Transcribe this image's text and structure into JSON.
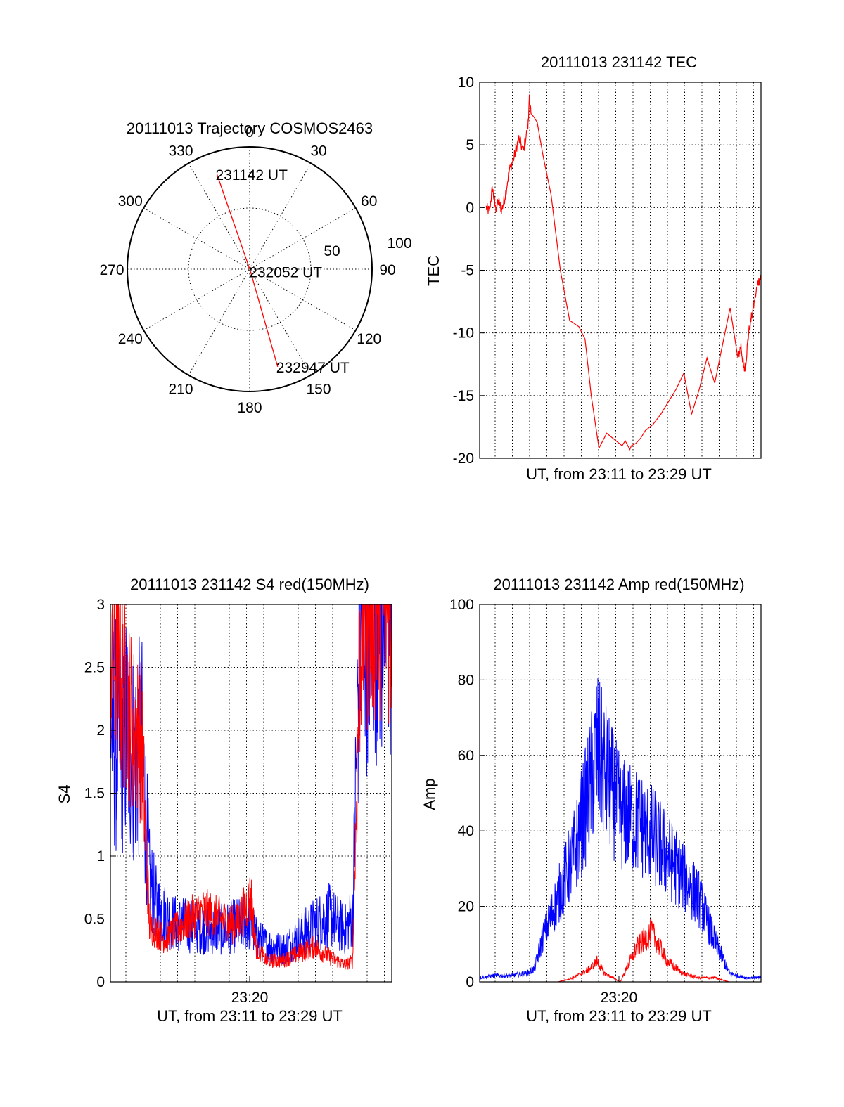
{
  "chart_data": [
    {
      "id": "polar",
      "type": "scatter",
      "title": "20111013 Trajectory COSMOS2463",
      "projection": "polar",
      "angle_labels": [
        "0",
        "30",
        "60",
        "90",
        "120",
        "150",
        "180",
        "210",
        "240",
        "270",
        "300",
        "330"
      ],
      "radial_labels": [
        "50",
        "100"
      ],
      "rlim": [
        0,
        100
      ],
      "grid": true,
      "track": [
        {
          "az": 341,
          "r": 82,
          "label": "231142 UT"
        },
        {
          "az": 160,
          "r": 2,
          "label": "232052 UT"
        },
        {
          "az": 164,
          "r": 83,
          "label": "232947 UT"
        }
      ],
      "colors": {
        "track": "#ff0000"
      }
    },
    {
      "id": "tec",
      "type": "line",
      "title": "20111013 231142 TEC",
      "xlabel": "UT, from 23:11 to 23:29 UT",
      "ylabel": "TEC",
      "ylim": [
        -20,
        10
      ],
      "yticks": [
        "10",
        "5",
        "0",
        "-5",
        "-10",
        "-15",
        "-20"
      ],
      "xlim_minutes": [
        0,
        18
      ],
      "grid": true,
      "series": [
        {
          "color": "#ff0000",
          "x": [
            0.2,
            0.4,
            0.6,
            0.8,
            1.0,
            1.2,
            1.4,
            1.7,
            2.0,
            2.3,
            2.6,
            2.9,
            3.0,
            3.1,
            3.3,
            3.5,
            3.9,
            4.4,
            5.0,
            5.6,
            6.2,
            6.6,
            7.0,
            7.5,
            8.0,
            8.5,
            9.0,
            9.2,
            9.5,
            9.6,
            9.9,
            10.2,
            10.5,
            11.0,
            11.5,
            12.0,
            12.5,
            13.0,
            13.5,
            14.0,
            14.5,
            15.0,
            15.5,
            16.0,
            16.5,
            16.7,
            16.9,
            17.0,
            17.2,
            17.5,
            17.8,
            18.0
          ],
          "y": [
            0.0,
            -0.3,
            1.6,
            -0.1,
            0.5,
            -0.2,
            0.8,
            3.0,
            4.0,
            5.5,
            4.5,
            6.5,
            8.8,
            7.5,
            7.2,
            6.8,
            4.0,
            1.0,
            -5.0,
            -9.0,
            -9.5,
            -10.5,
            -15.0,
            -19.2,
            -18.0,
            -18.5,
            -19.0,
            -18.6,
            -19.3,
            -19.0,
            -18.8,
            -18.4,
            -17.8,
            -17.3,
            -16.5,
            -15.5,
            -14.5,
            -13.2,
            -16.5,
            -14.5,
            -12.0,
            -14.0,
            -11.0,
            -8.0,
            -12.0,
            -11.0,
            -13.0,
            -12.5,
            -10.0,
            -8.0,
            -6.0,
            -5.5
          ]
        }
      ]
    },
    {
      "id": "s4",
      "type": "line",
      "title": "20111013 231142 S4 red(150MHz)",
      "xlabel": "UT, from 23:11 to 23:29 UT",
      "ylabel": "S4",
      "ylim": [
        0,
        3
      ],
      "yticks": [
        "3",
        "2.5",
        "2",
        "1.5",
        "1",
        "0.5",
        "0"
      ],
      "xtick_label": "23:20",
      "xlim_minutes": [
        0,
        18
      ],
      "grid": true,
      "series": [
        {
          "color": "#0000ff",
          "x": [
            0.0,
            0.5,
            1.0,
            1.5,
            2.0,
            2.5,
            3.0,
            3.5,
            4.0,
            5.0,
            6.0,
            7.0,
            8.0,
            9.0,
            9.3,
            10.0,
            11.0,
            12.0,
            13.0,
            14.0,
            15.0,
            15.5,
            16.0,
            16.5,
            17.0,
            17.5,
            18.0
          ],
          "y": [
            1.8,
            1.6,
            1.7,
            1.5,
            1.6,
            0.7,
            0.5,
            0.45,
            0.4,
            0.38,
            0.36,
            0.35,
            0.38,
            0.4,
            0.3,
            0.25,
            0.22,
            0.3,
            0.38,
            0.45,
            0.35,
            0.45,
            2.6,
            2.8,
            2.9,
            2.7,
            2.8
          ],
          "noise_amplitude": 0.9
        },
        {
          "color": "#ff0000",
          "x": [
            0.0,
            0.5,
            1.0,
            1.5,
            2.0,
            2.5,
            3.0,
            3.5,
            4.0,
            5.0,
            6.0,
            7.0,
            8.0,
            9.0,
            9.3,
            10.0,
            11.0,
            12.0,
            13.0,
            14.0,
            15.0,
            15.5,
            16.0,
            16.5,
            17.0,
            17.5,
            18.0
          ],
          "y": [
            2.4,
            2.2,
            2.0,
            1.8,
            1.7,
            0.4,
            0.35,
            0.3,
            0.35,
            0.45,
            0.5,
            0.45,
            0.4,
            0.6,
            0.25,
            0.15,
            0.15,
            0.2,
            0.25,
            0.18,
            0.12,
            0.15,
            2.5,
            2.7,
            2.8,
            2.9,
            2.7
          ],
          "noise_amplitude": 0.6
        }
      ]
    },
    {
      "id": "amp",
      "type": "line",
      "title": "20111013 231142 Amp red(150MHz)",
      "xlabel": "UT, from 23:11 to 23:29 UT",
      "ylabel": "Amp",
      "ylim": [
        0,
        100
      ],
      "yticks": [
        "100",
        "80",
        "60",
        "40",
        "20",
        "0"
      ],
      "xtick_label": "23:20",
      "xlim_minutes": [
        0,
        18
      ],
      "grid": true,
      "series": [
        {
          "color": "#0000ff",
          "x": [
            0.0,
            1.0,
            2.0,
            3.0,
            3.5,
            4.0,
            5.0,
            6.0,
            7.0,
            7.5,
            8.0,
            9.0,
            10.0,
            11.0,
            12.0,
            13.0,
            14.0,
            15.0,
            16.0,
            17.0,
            18.0
          ],
          "y": [
            1,
            1.5,
            1.5,
            2,
            3,
            10,
            20,
            30,
            45,
            55,
            50,
            40,
            38,
            35,
            30,
            25,
            20,
            10,
            2,
            1,
            1
          ],
          "noise_amplitude": 0.6
        },
        {
          "color": "#ff0000",
          "x": [
            0.0,
            4.0,
            5.0,
            6.0,
            7.0,
            7.5,
            8.0,
            9.0,
            10.0,
            11.0,
            12.0,
            13.0,
            14.0,
            15.0,
            16.0,
            18.0
          ],
          "y": [
            0,
            0,
            0,
            1,
            3,
            5,
            2,
            0,
            8,
            12,
            5,
            2,
            1,
            1,
            0,
            0
          ],
          "noise_amplitude": 0.5
        }
      ]
    }
  ]
}
